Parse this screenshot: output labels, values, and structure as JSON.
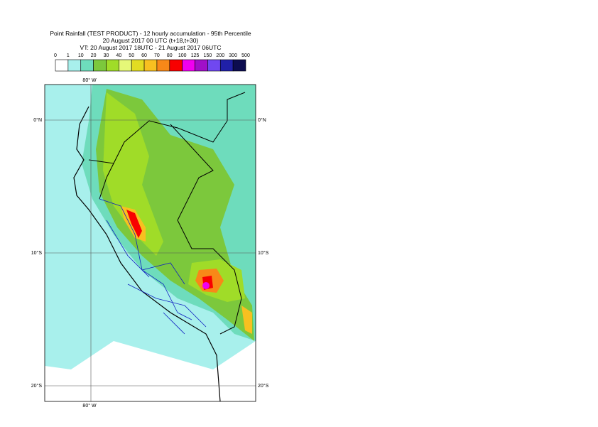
{
  "header": {
    "title_lines": [
      "Point Rainfall (TEST PRODUCT) - 12 hourly accumulation - 95th Percentile",
      "20 August 2017 00 UTC (t+18,t+30)",
      "VT: 20 August 2017 18UTC - 21 August 2017 06UTC"
    ]
  },
  "legend": {
    "labels": [
      0,
      1,
      10,
      20,
      30,
      40,
      50,
      60,
      70,
      80,
      100,
      125,
      150,
      200,
      300,
      500
    ],
    "colors": [
      "#ffffff",
      "#a8f0ec",
      "#6edcbc",
      "#7cc83c",
      "#a0dc28",
      "#e6f878",
      "#e2dc22",
      "#f8c020",
      "#f88818",
      "#f80000",
      "#f000f0",
      "#a010c8",
      "#7048f0",
      "#2020a8",
      "#0c0c50"
    ]
  },
  "map": {
    "lon_labels": [
      "80° W",
      "80° W"
    ],
    "lat_labels_left": [
      "0°N",
      "10°S",
      "20°S"
    ],
    "lat_labels_right": [
      "0°N",
      "10°S",
      "20°S"
    ]
  }
}
